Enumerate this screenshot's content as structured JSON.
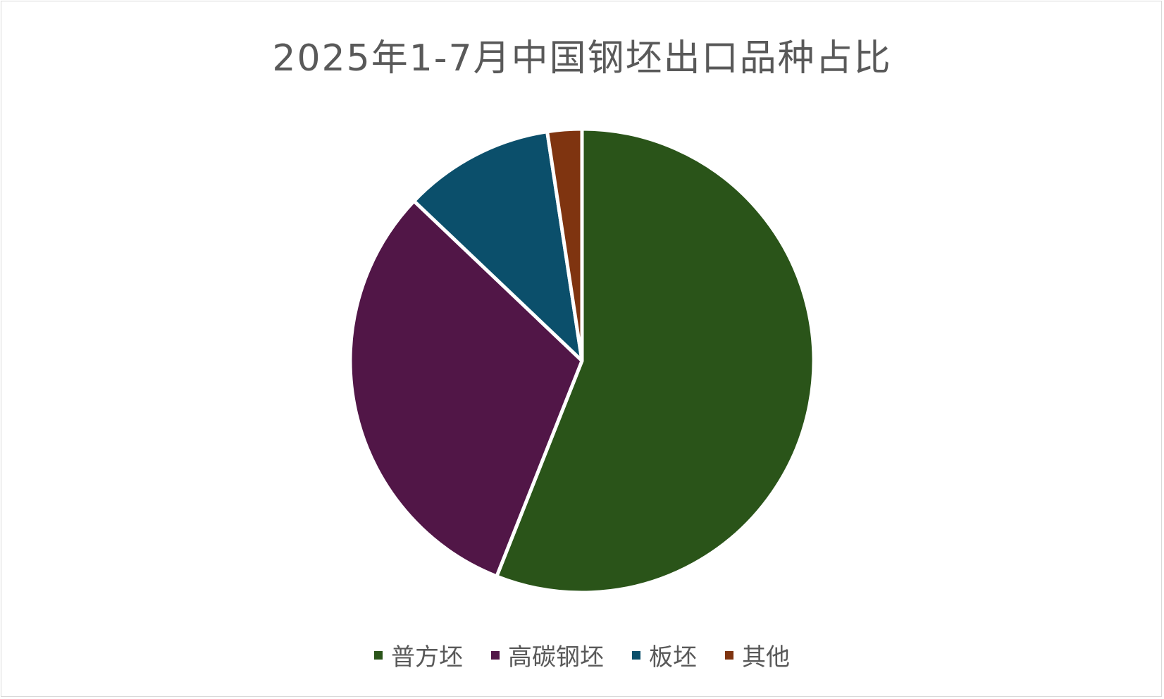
{
  "chart_data": {
    "type": "pie",
    "title": "2025年1-7月中国钢坯出口品种占比",
    "categories": [
      "普方坯",
      "高碳钢坯",
      "板坯",
      "其他"
    ],
    "values": [
      56.0,
      31.1,
      10.5,
      2.4
    ],
    "unit": "%",
    "colors": [
      "#2a5419",
      "#511647",
      "#0b4f6b",
      "#7f3410"
    ],
    "start_angle": "12 o'clock",
    "direction": "clockwise",
    "legend_position": "bottom"
  }
}
